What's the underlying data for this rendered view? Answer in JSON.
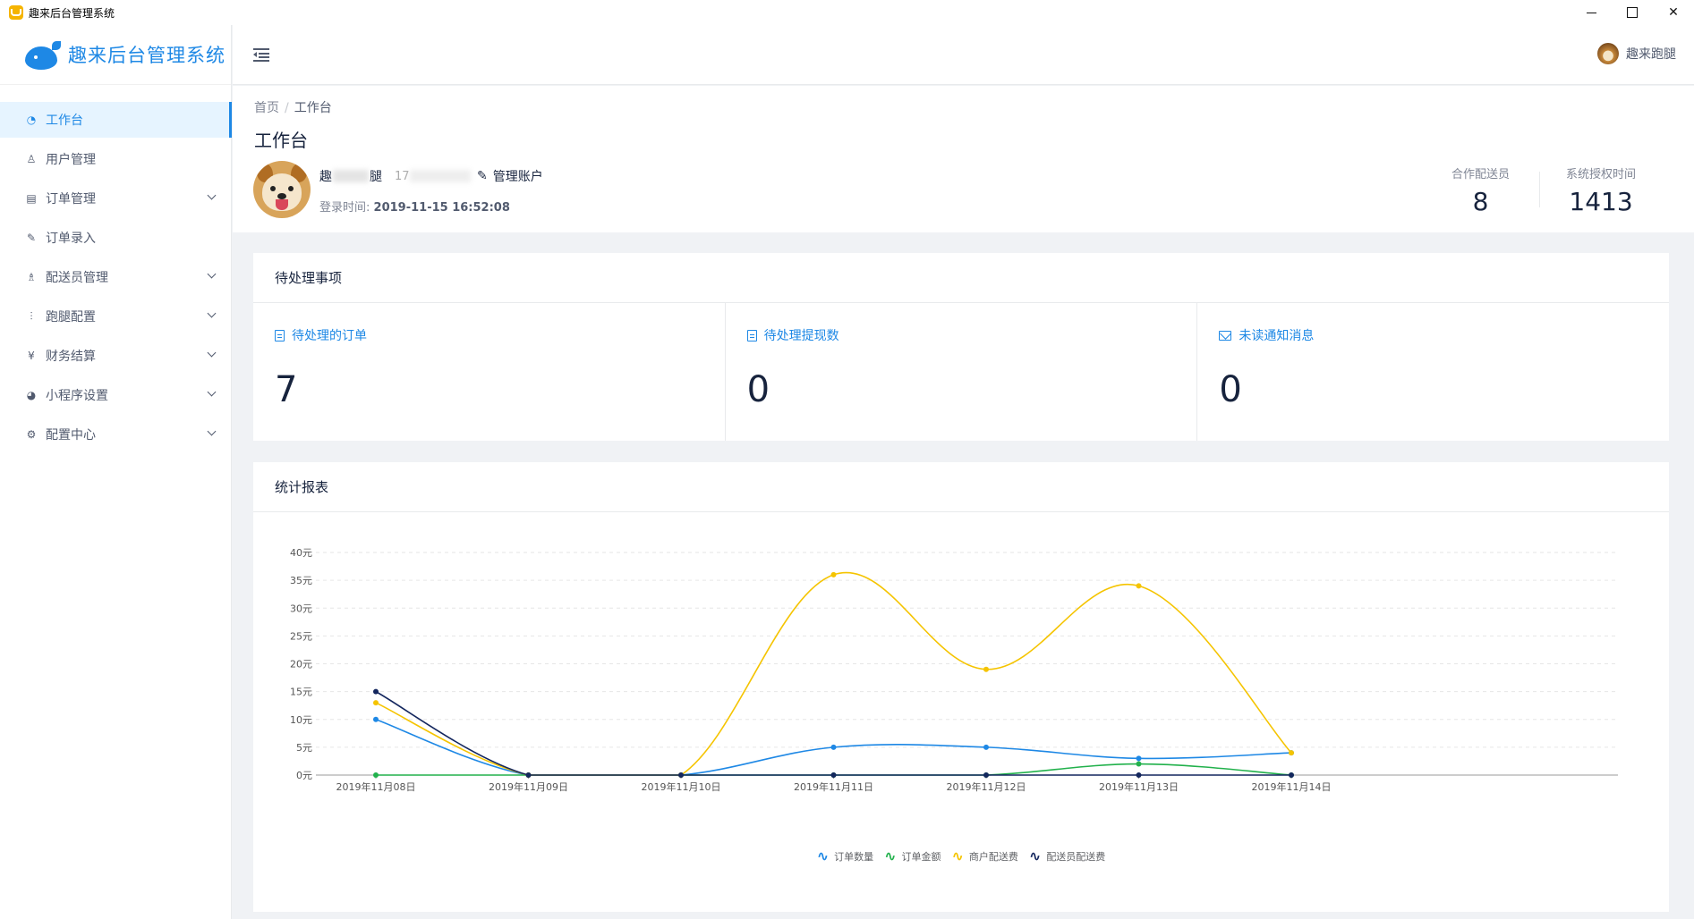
{
  "window": {
    "title": "趣来后台管理系统"
  },
  "sidebar": {
    "brand": "趣来后台管理系统",
    "items": [
      {
        "label": "工作台",
        "icon": "dashboard-icon",
        "active": true,
        "expandable": false
      },
      {
        "label": "用户管理",
        "icon": "user-icon",
        "active": false,
        "expandable": false
      },
      {
        "label": "订单管理",
        "icon": "document-icon",
        "active": false,
        "expandable": true
      },
      {
        "label": "订单录入",
        "icon": "edit-icon",
        "active": false,
        "expandable": false
      },
      {
        "label": "配送员管理",
        "icon": "courier-icon",
        "active": false,
        "expandable": true
      },
      {
        "label": "跑腿配置",
        "icon": "sliders-icon",
        "active": false,
        "expandable": true
      },
      {
        "label": "财务结算",
        "icon": "yen-icon",
        "active": false,
        "expandable": true
      },
      {
        "label": "小程序设置",
        "icon": "wechat-icon",
        "active": false,
        "expandable": true
      },
      {
        "label": "配置中心",
        "icon": "gear-icon",
        "active": false,
        "expandable": true
      }
    ]
  },
  "header": {
    "username": "趣来跑腿"
  },
  "page": {
    "breadcrumb": [
      "首页",
      "工作台"
    ],
    "breadcrumb_sep": "/",
    "title": "工作台",
    "user": {
      "name_first": "趣",
      "name_last": "腿",
      "phone_prefix": "17",
      "manage_label": "管理账户",
      "login_label": "登录时间:",
      "login_time": "2019-11-15 16:52:08"
    },
    "stats": [
      {
        "label": "合作配送员",
        "value": "8"
      },
      {
        "label": "系统授权时间",
        "value": "1413"
      }
    ]
  },
  "pending": {
    "title": "待处理事项",
    "items": [
      {
        "label": "待处理的订单",
        "value": "7",
        "icon": "document-icon"
      },
      {
        "label": "待处理提现数",
        "value": "0",
        "icon": "document-icon"
      },
      {
        "label": "未读通知消息",
        "value": "0",
        "icon": "mail-icon"
      }
    ]
  },
  "report": {
    "title": "统计报表"
  },
  "chart_data": {
    "type": "line",
    "title": "",
    "categories": [
      "2019年11月08日",
      "2019年11月09日",
      "2019年11月10日",
      "2019年11月11日",
      "2019年11月12日",
      "2019年11月13日",
      "2019年11月14日"
    ],
    "ylim": [
      0,
      40
    ],
    "yticks": [
      "0元",
      "5元",
      "10元",
      "15元",
      "20元",
      "25元",
      "30元",
      "35元",
      "40元"
    ],
    "ytick_values": [
      0,
      5,
      10,
      15,
      20,
      25,
      30,
      35,
      40
    ],
    "grid": true,
    "legend_position": "bottom",
    "smooth": true,
    "series": [
      {
        "name": "订单数量",
        "color": "#1e88e5",
        "values": [
          10,
          0,
          0,
          5,
          5,
          3,
          4
        ]
      },
      {
        "name": "订单金额",
        "color": "#22b14c",
        "values": [
          0,
          0,
          0,
          0,
          0,
          2,
          0
        ]
      },
      {
        "name": "商户配送费",
        "color": "#f5c400",
        "values": [
          13,
          0,
          0,
          36,
          19,
          34,
          4
        ]
      },
      {
        "name": "配送员配送费",
        "color": "#14275e",
        "values": [
          15,
          0,
          0,
          0,
          0,
          0,
          0
        ]
      }
    ]
  }
}
